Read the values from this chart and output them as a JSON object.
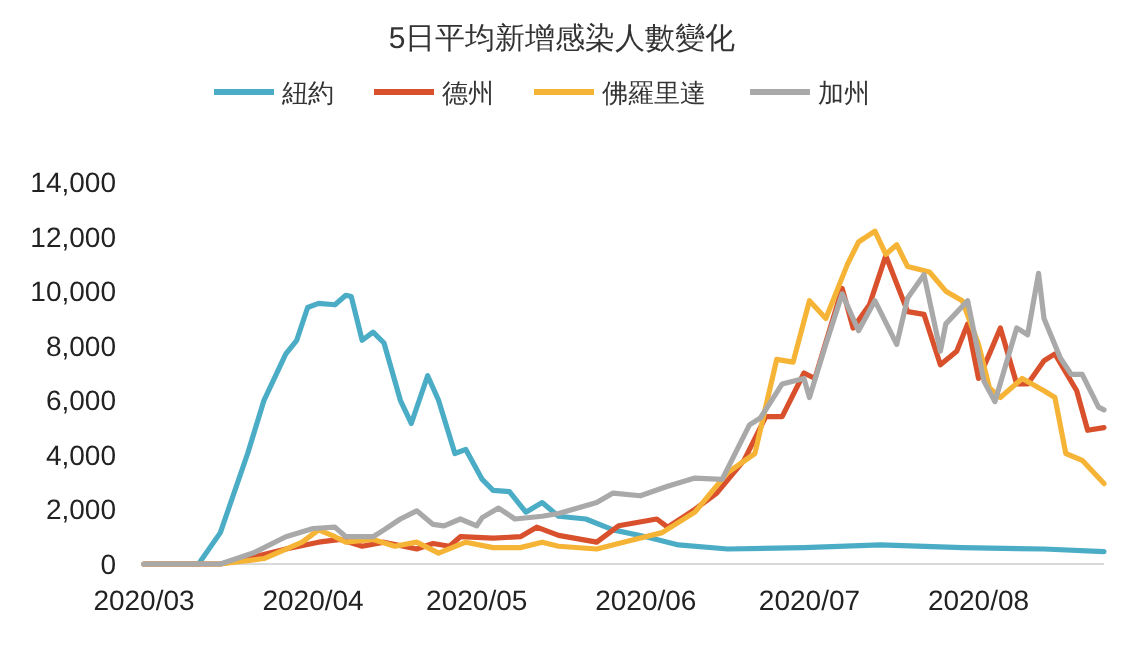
{
  "chart_data": {
    "type": "line",
    "title": "5日平均新增感染人數變化",
    "legend": "top",
    "grid": false,
    "line_style": "solid",
    "marker": "none",
    "xlim": [
      "2020-03-01",
      "2020-08-24"
    ],
    "xticks": [
      {
        "value": "2020-03-01",
        "label": "2020/03"
      },
      {
        "value": "2020-04-01",
        "label": "2020/04"
      },
      {
        "value": "2020-05-01",
        "label": "2020/05"
      },
      {
        "value": "2020-06-01",
        "label": "2020/06"
      },
      {
        "value": "2020-07-01",
        "label": "2020/07"
      },
      {
        "value": "2020-08-01",
        "label": "2020/08"
      }
    ],
    "ylim": [
      0,
      14000
    ],
    "yticks": [
      {
        "value": 0,
        "label": "0"
      },
      {
        "value": 2000,
        "label": "2,000"
      },
      {
        "value": 4000,
        "label": "4,000"
      },
      {
        "value": 6000,
        "label": "6,000"
      },
      {
        "value": 8000,
        "label": "8,000"
      },
      {
        "value": 10000,
        "label": "10,000"
      },
      {
        "value": 12000,
        "label": "12,000"
      },
      {
        "value": 14000,
        "label": "14,000"
      }
    ],
    "series": [
      {
        "name": "紐約",
        "color": "#4bacc6",
        "x": [
          "2020-03-01",
          "2020-03-11",
          "2020-03-15",
          "2020-03-20",
          "2020-03-23",
          "2020-03-27",
          "2020-03-29",
          "2020-03-31",
          "2020-04-02",
          "2020-04-05",
          "2020-04-07",
          "2020-04-08",
          "2020-04-10",
          "2020-04-12",
          "2020-04-14",
          "2020-04-17",
          "2020-04-19",
          "2020-04-22",
          "2020-04-24",
          "2020-04-27",
          "2020-04-29",
          "2020-05-02",
          "2020-05-04",
          "2020-05-07",
          "2020-05-10",
          "2020-05-13",
          "2020-05-16",
          "2020-05-21",
          "2020-05-26",
          "2020-06-01",
          "2020-06-07",
          "2020-06-16",
          "2020-06-30",
          "2020-07-14",
          "2020-07-29",
          "2020-08-13",
          "2020-08-24"
        ],
        "values": [
          0,
          0,
          1150,
          4050,
          6000,
          7700,
          8200,
          9400,
          9550,
          9500,
          9850,
          9800,
          8200,
          8500,
          8100,
          6000,
          5150,
          6900,
          6000,
          4050,
          4200,
          3100,
          2700,
          2650,
          1900,
          2250,
          1750,
          1650,
          1250,
          1000,
          700,
          550,
          600,
          700,
          600,
          550,
          450
        ]
      },
      {
        "name": "德州",
        "color": "#d9512c",
        "x": [
          "2020-03-01",
          "2020-03-15",
          "2020-03-22",
          "2020-03-27",
          "2020-04-02",
          "2020-04-06",
          "2020-04-10",
          "2020-04-14",
          "2020-04-20",
          "2020-04-23",
          "2020-04-26",
          "2020-04-28",
          "2020-05-04",
          "2020-05-09",
          "2020-05-12",
          "2020-05-16",
          "2020-05-23",
          "2020-05-27",
          "2020-06-03",
          "2020-06-05",
          "2020-06-10",
          "2020-06-14",
          "2020-06-19",
          "2020-06-23",
          "2020-06-26",
          "2020-06-30",
          "2020-07-02",
          "2020-07-07",
          "2020-07-09",
          "2020-07-12",
          "2020-07-15",
          "2020-07-19",
          "2020-07-22",
          "2020-07-25",
          "2020-07-28",
          "2020-07-30",
          "2020-08-01",
          "2020-08-03",
          "2020-08-05",
          "2020-08-08",
          "2020-08-10",
          "2020-08-13",
          "2020-08-15",
          "2020-08-19",
          "2020-08-21",
          "2020-08-24"
        ],
        "values": [
          0,
          0,
          300,
          550,
          800,
          900,
          650,
          800,
          550,
          750,
          650,
          1000,
          950,
          1000,
          1350,
          1050,
          800,
          1400,
          1650,
          1350,
          2000,
          2600,
          3800,
          5400,
          5400,
          7000,
          6800,
          10100,
          8650,
          9500,
          11300,
          9250,
          9150,
          7300,
          7800,
          8800,
          6800,
          7700,
          8650,
          6600,
          6600,
          7450,
          7700,
          6350,
          4900,
          5000
        ]
      },
      {
        "name": "佛羅里達",
        "color": "#f6b436",
        "x": [
          "2020-03-01",
          "2020-03-15",
          "2020-03-23",
          "2020-03-30",
          "2020-04-02",
          "2020-04-05",
          "2020-04-07",
          "2020-04-12",
          "2020-04-16",
          "2020-04-20",
          "2020-04-24",
          "2020-04-29",
          "2020-05-04",
          "2020-05-09",
          "2020-05-13",
          "2020-05-16",
          "2020-05-23",
          "2020-05-29",
          "2020-06-04",
          "2020-06-10",
          "2020-06-16",
          "2020-06-21",
          "2020-06-25",
          "2020-06-28",
          "2020-07-01",
          "2020-07-04",
          "2020-07-08",
          "2020-07-10",
          "2020-07-13",
          "2020-07-15",
          "2020-07-17",
          "2020-07-19",
          "2020-07-23",
          "2020-07-26",
          "2020-07-29",
          "2020-08-01",
          "2020-08-03",
          "2020-08-05",
          "2020-08-09",
          "2020-08-13",
          "2020-08-15",
          "2020-08-17",
          "2020-08-20",
          "2020-08-24"
        ],
        "values": [
          0,
          0,
          200,
          800,
          1250,
          1000,
          800,
          900,
          650,
          800,
          400,
          800,
          600,
          600,
          800,
          650,
          550,
          850,
          1150,
          1900,
          3350,
          4050,
          7500,
          7400,
          9650,
          9000,
          11000,
          11800,
          12200,
          11350,
          11700,
          10900,
          10700,
          10000,
          9650,
          8050,
          6450,
          6100,
          6800,
          6350,
          6100,
          4050,
          3800,
          2950
        ]
      },
      {
        "name": "加州",
        "color": "#a9a9a9",
        "x": [
          "2020-03-01",
          "2020-03-15",
          "2020-03-21",
          "2020-03-27",
          "2020-04-01",
          "2020-04-05",
          "2020-04-07",
          "2020-04-12",
          "2020-04-14",
          "2020-04-17",
          "2020-04-20",
          "2020-04-23",
          "2020-04-25",
          "2020-04-28",
          "2020-05-01",
          "2020-05-02",
          "2020-05-05",
          "2020-05-08",
          "2020-05-13",
          "2020-05-16",
          "2020-05-23",
          "2020-05-26",
          "2020-05-31",
          "2020-06-05",
          "2020-06-10",
          "2020-06-15",
          "2020-06-20",
          "2020-06-22",
          "2020-06-26",
          "2020-06-30",
          "2020-07-01",
          "2020-07-04",
          "2020-07-07",
          "2020-07-10",
          "2020-07-13",
          "2020-07-17",
          "2020-07-19",
          "2020-07-22",
          "2020-07-25",
          "2020-07-26",
          "2020-07-30",
          "2020-08-02",
          "2020-08-04",
          "2020-08-06",
          "2020-08-08",
          "2020-08-10",
          "2020-08-12",
          "2020-08-13",
          "2020-08-16",
          "2020-08-18",
          "2020-08-20",
          "2020-08-23",
          "2020-08-24"
        ],
        "values": [
          0,
          0,
          400,
          1000,
          1300,
          1350,
          1000,
          1000,
          1250,
          1650,
          1950,
          1450,
          1400,
          1650,
          1400,
          1700,
          2050,
          1650,
          1750,
          1850,
          2250,
          2600,
          2500,
          2850,
          3150,
          3100,
          5100,
          5350,
          6600,
          6800,
          6100,
          8050,
          9900,
          8550,
          9650,
          8050,
          9750,
          10600,
          7800,
          8800,
          9650,
          6700,
          5950,
          7300,
          8650,
          8400,
          10650,
          9000,
          7550,
          6950,
          6950,
          5750,
          5650
        ]
      }
    ]
  }
}
